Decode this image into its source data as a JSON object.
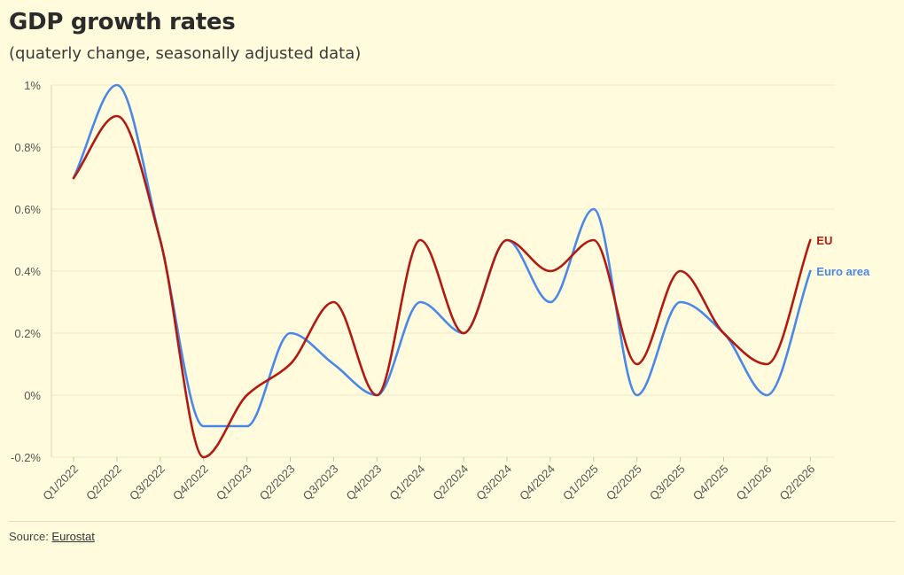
{
  "title": "GDP growth rates",
  "subtitle": "(quaterly change, seasonally adjusted data)",
  "source": {
    "prefix": "Source: ",
    "link_text": "Eurostat"
  },
  "chart_data": {
    "type": "line",
    "title": "GDP growth rates",
    "subtitle": "(quaterly change, seasonally adjusted data)",
    "xlabel": "",
    "ylabel": "",
    "x": [
      "Q1/2022",
      "Q2/2022",
      "Q3/2022",
      "Q4/2022",
      "Q1/2023",
      "Q2/2023",
      "Q3/2023",
      "Q4/2023",
      "Q1/2024",
      "Q2/2024",
      "Q3/2024",
      "Q4/2024",
      "Q1/2025",
      "Q2/2025",
      "Q3/2025",
      "Q4/2025",
      "Q1/2026",
      "Q2/2026"
    ],
    "ylim": [
      -0.2,
      1
    ],
    "yticks": [
      -0.2,
      0,
      0.2,
      0.4,
      0.6,
      0.8,
      1
    ],
    "ytick_labels": [
      "-0.2%",
      "0%",
      "0.2%",
      "0.4%",
      "0.6%",
      "0.8%",
      "1%"
    ],
    "grid": true,
    "legend": "direct labels at line ends",
    "series": [
      {
        "name": "Euro area",
        "color": "#4a88e8",
        "values": [
          0.7,
          1.0,
          0.5,
          -0.1,
          -0.1,
          0.2,
          0.1,
          0.0,
          0.3,
          0.2,
          0.5,
          0.3,
          0.6,
          0.0,
          0.3,
          0.2,
          0.0,
          0.4
        ]
      },
      {
        "name": "EU",
        "color": "#b01a12",
        "values": [
          0.7,
          0.9,
          0.5,
          -0.2,
          0.0,
          0.1,
          0.3,
          0.0,
          0.5,
          0.2,
          0.5,
          0.4,
          0.5,
          0.1,
          0.4,
          0.2,
          0.1,
          0.5
        ]
      }
    ]
  }
}
